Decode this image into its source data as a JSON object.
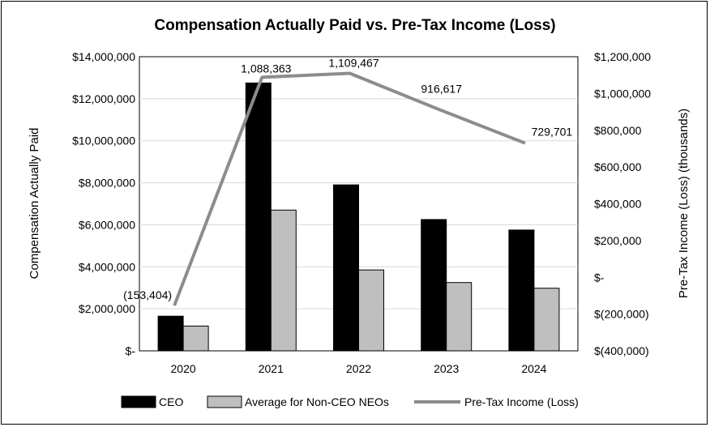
{
  "chart_data": {
    "type": "bar",
    "title": "Compensation Actually Paid vs. Pre-Tax Income (Loss)",
    "categories": [
      "2020",
      "2021",
      "2022",
      "2023",
      "2024"
    ],
    "ylabel": "Compensation Actually Paid",
    "y2label": "Pre-Tax Income (Loss) (thousands)",
    "ylim": [
      0,
      14000000
    ],
    "y2lim": [
      -400000,
      1200000
    ],
    "yticks": [
      0,
      2000000,
      4000000,
      6000000,
      8000000,
      10000000,
      12000000,
      14000000
    ],
    "ytick_labels": [
      "$-",
      "$2,000,000",
      "$4,000,000",
      "$6,000,000",
      "$8,000,000",
      "$10,000,000",
      "$12,000,000",
      "$14,000,000"
    ],
    "y2ticks": [
      -400000,
      -200000,
      0,
      200000,
      400000,
      600000,
      800000,
      1000000,
      1200000
    ],
    "y2tick_labels": [
      "$(400,000)",
      "$(200,000)",
      "$-",
      "$200,000",
      "$400,000",
      "$600,000",
      "$800,000",
      "$1,000,000",
      "$1,200,000"
    ],
    "grid": true,
    "legend_position": "bottom",
    "series": [
      {
        "name": "CEO",
        "kind": "bar",
        "color": "#000000",
        "values": [
          1650000,
          12750000,
          7900000,
          6250000,
          5750000
        ]
      },
      {
        "name": "Average for Non-CEO NEOs",
        "kind": "bar",
        "color": "#bfbfbf",
        "values": [
          1180000,
          6700000,
          3850000,
          3250000,
          2980000
        ]
      },
      {
        "name": "Pre-Tax Income (Loss)",
        "kind": "line",
        "axis": "right",
        "color": "#8c8c8c",
        "values": [
          -153404,
          1088363,
          1109467,
          916617,
          729701
        ],
        "labels": [
          "(153,404)",
          "1,088,363",
          "1,109,467",
          "916,617",
          "729,701"
        ]
      }
    ]
  }
}
